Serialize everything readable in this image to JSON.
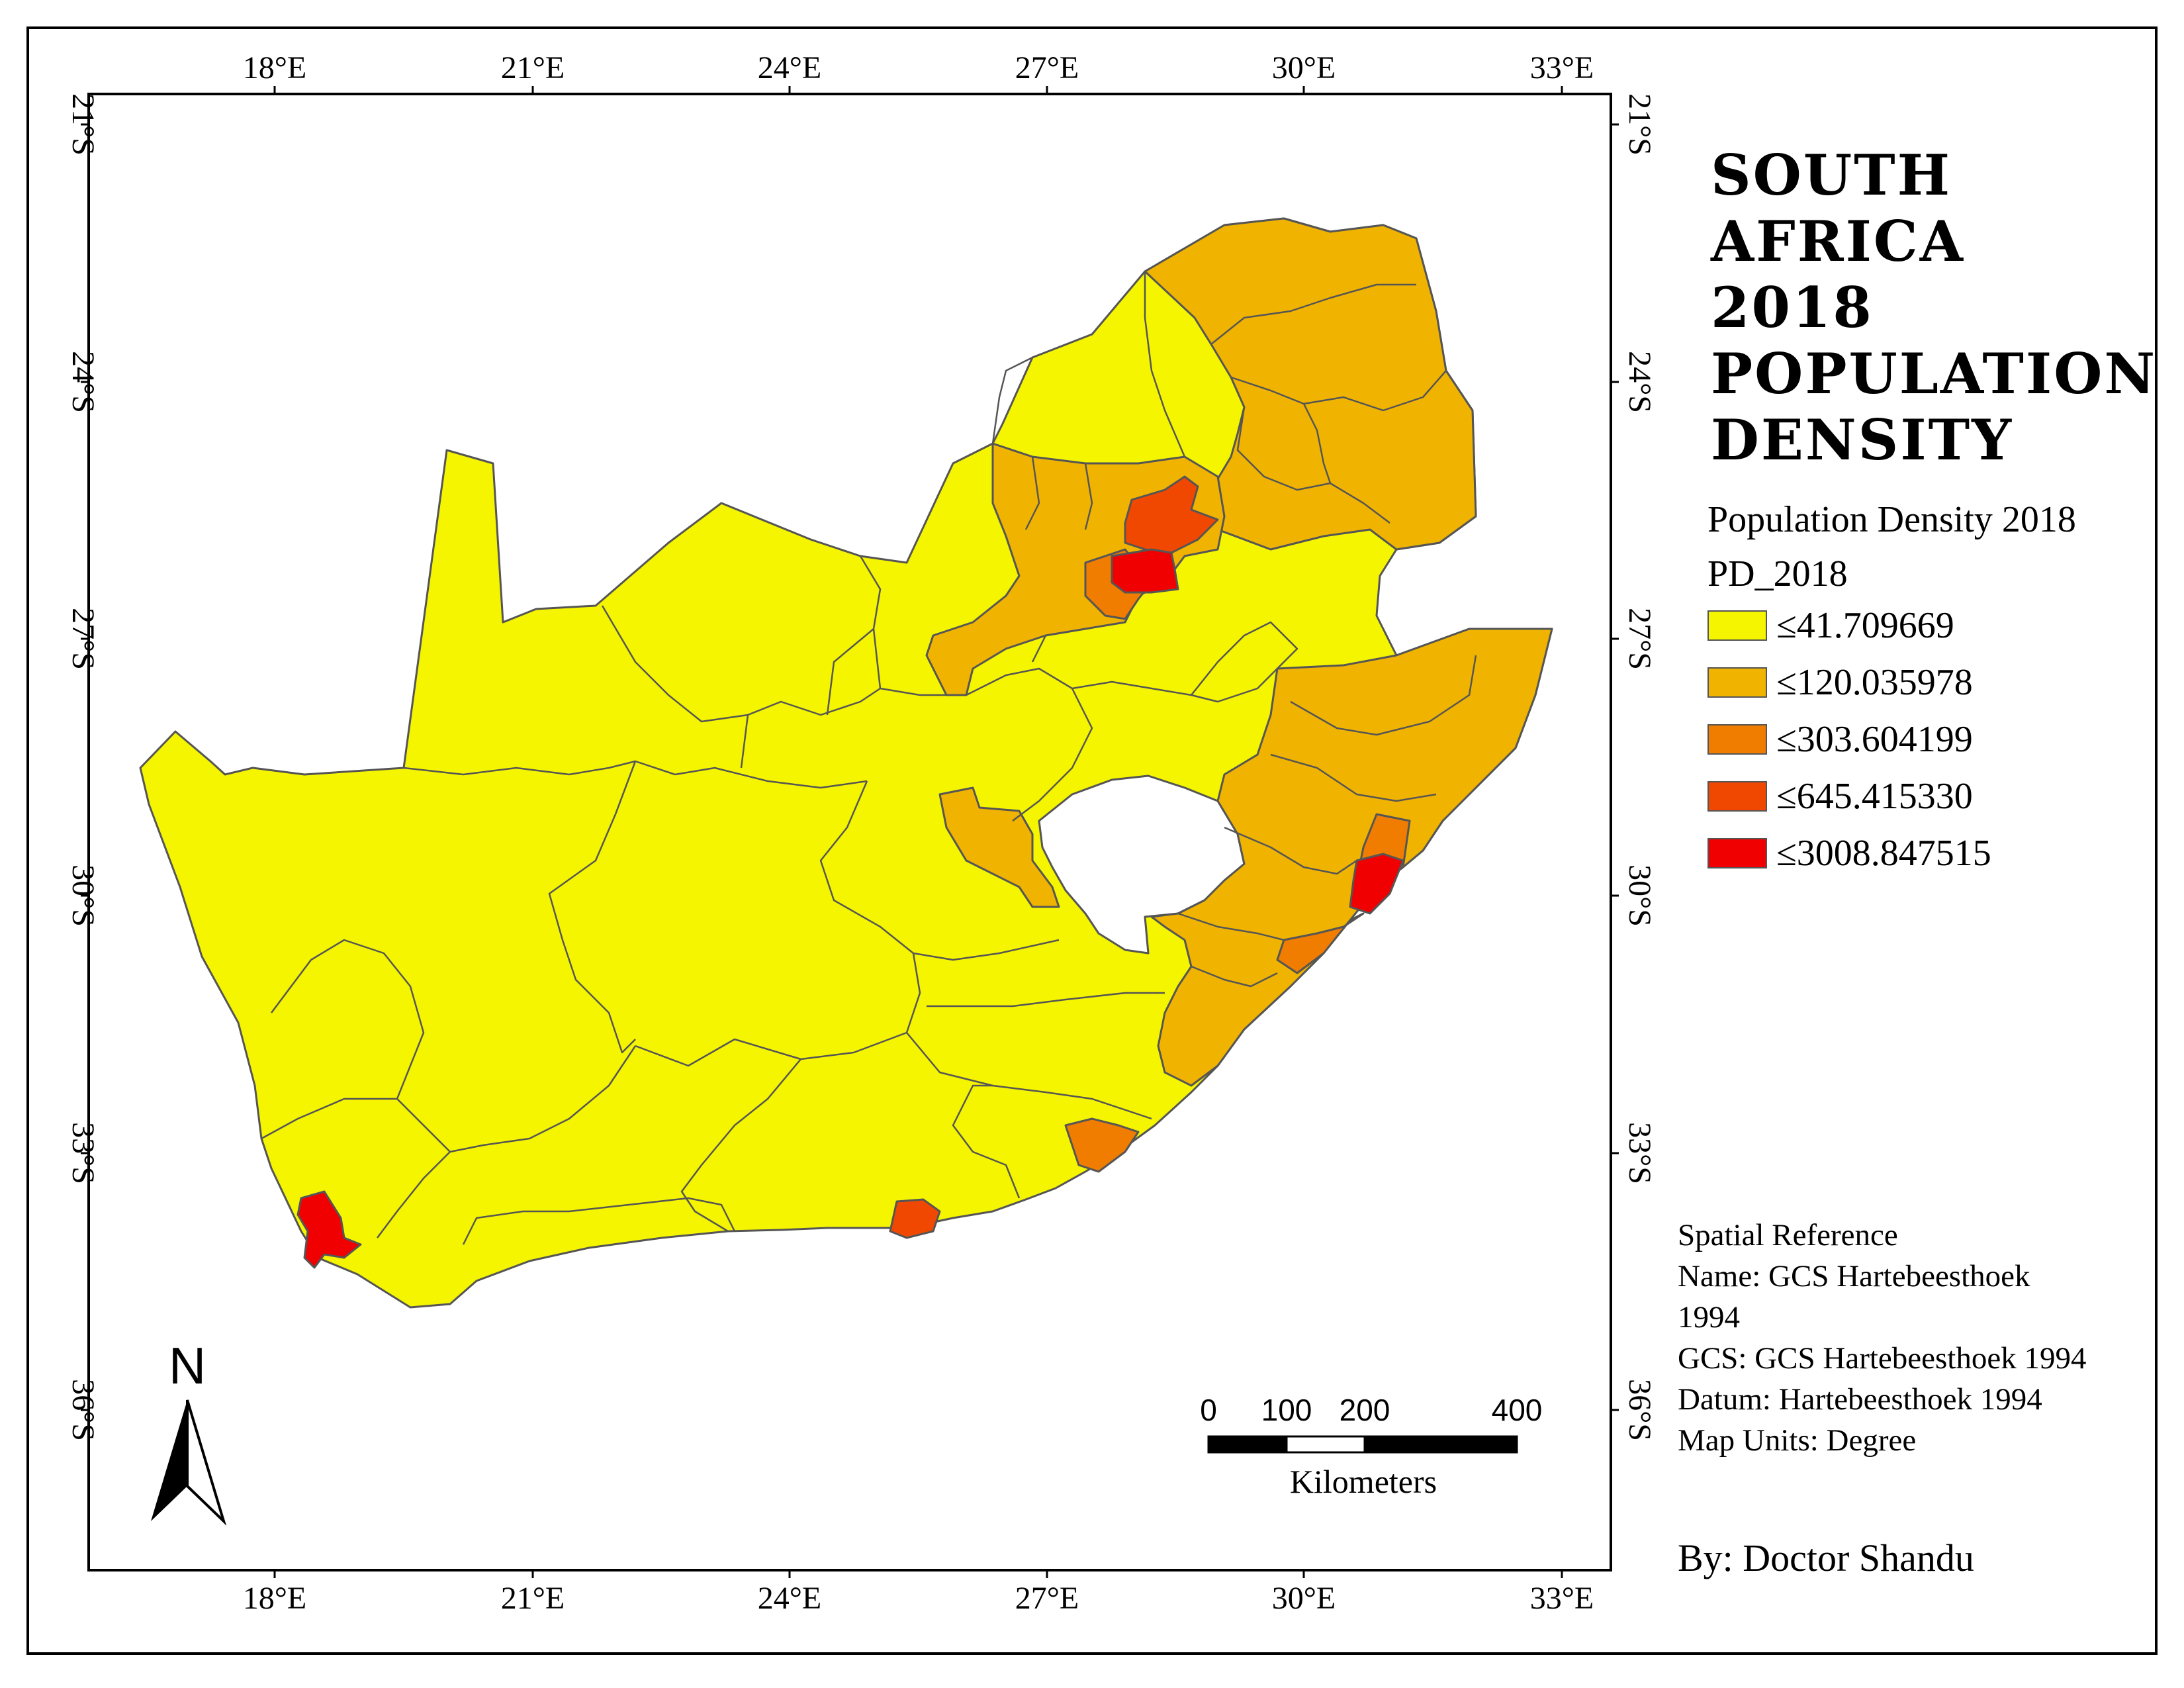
{
  "map": {
    "title": "South Africa 2018 Population Density",
    "longitude_ticks": [
      "18°E",
      "21°E",
      "24°E",
      "27°E",
      "30°E",
      "33°E"
    ],
    "latitude_ticks": [
      "21°S",
      "24°S",
      "27°S",
      "30°S",
      "33°S",
      "36°S"
    ],
    "legend": {
      "heading": "Population Density 2018",
      "field": "PD_2018",
      "classes": [
        {
          "label": "≤41.709669",
          "color": "#f5f500"
        },
        {
          "label": "≤120.035978",
          "color": "#f0b400"
        },
        {
          "label": "≤303.604199",
          "color": "#f07d00"
        },
        {
          "label": "≤645.415330",
          "color": "#f04800"
        },
        {
          "label": "≤3008.847515",
          "color": "#f00000"
        }
      ]
    },
    "north_arrow": {
      "label": "N",
      "icon": "north-arrow-icon"
    },
    "scale_bar": {
      "ticks": [
        "0",
        "100",
        "200",
        "400"
      ],
      "units": "Kilometers"
    },
    "spatial_reference": [
      "Spatial Reference",
      "Name: GCS Hartebeesthoek",
      "1994",
      "GCS: GCS Hartebeesthoek 1994",
      "Datum: Hartebeesthoek 1994",
      "Map Units: Degree"
    ],
    "author": "By: Doctor Shandu",
    "colors": {
      "border": "#555555",
      "frame": "#000000",
      "background": "#ffffff"
    }
  }
}
